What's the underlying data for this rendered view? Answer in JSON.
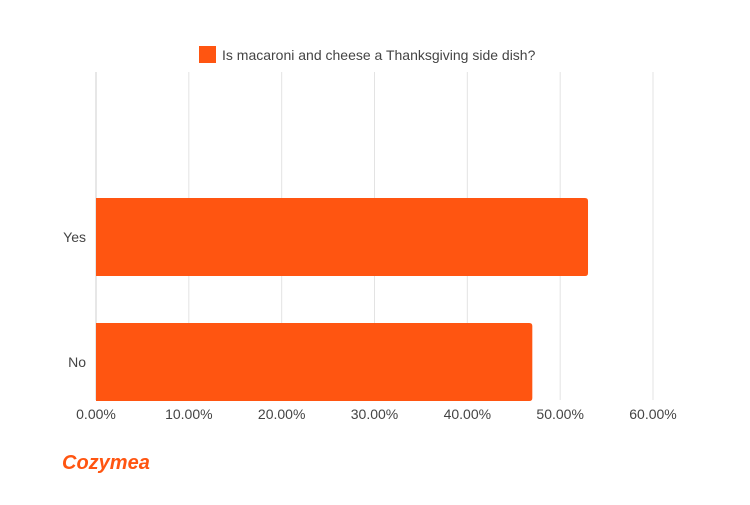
{
  "chart_data": {
    "type": "bar",
    "orientation": "horizontal",
    "title": "",
    "xlabel": "",
    "ylabel": "",
    "categories": [
      "Yes",
      "No"
    ],
    "series": [
      {
        "name": "Is macaroni and cheese a Thanksgiving side dish?",
        "values": [
          53.0,
          47.0
        ],
        "color": "#ff5511"
      }
    ],
    "xlim": [
      0,
      60
    ],
    "x_ticks": [
      0,
      10,
      20,
      30,
      40,
      50,
      60
    ],
    "x_tick_labels": [
      "0.00%",
      "10.00%",
      "20.00%",
      "30.00%",
      "40.00%",
      "50.00%",
      "60.00%"
    ],
    "value_unit": "percent",
    "grid": "vertical",
    "legend_position": "top-center"
  },
  "branding": {
    "logo_text": "Cozymeal",
    "logo_color": "#ff5511"
  },
  "colors": {
    "bar": "#ff5511",
    "grid": "#e3e3e3",
    "axis_text": "#444444"
  }
}
